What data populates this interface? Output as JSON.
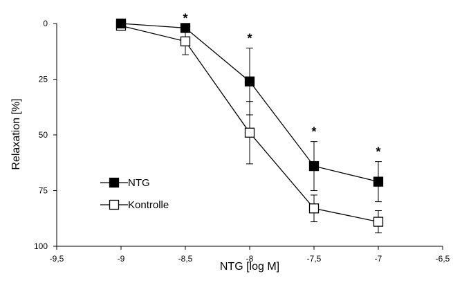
{
  "chart_data": {
    "type": "line",
    "xlabel": "NTG [log M]",
    "ylabel": "Relaxation [%]",
    "xlim": [
      -9.5,
      -6.5
    ],
    "ylim": [
      0,
      100
    ],
    "y_inverted": true,
    "grid": false,
    "legend_position": "bottom-left",
    "x_ticks": [
      -9.5,
      -9,
      -8.5,
      -8,
      -7.5,
      -7,
      -6.5
    ],
    "x_tick_labels": [
      "-9,5",
      "-9",
      "-8,5",
      "-8",
      "-7,5",
      "-7",
      "-6,5"
    ],
    "y_ticks": [
      0,
      25,
      50,
      75,
      100
    ],
    "y_tick_labels": [
      "0",
      "25",
      "50",
      "75",
      "100"
    ],
    "x": [
      -9,
      -8.5,
      -8,
      -7.5,
      -7
    ],
    "series": [
      {
        "name": "NTG",
        "marker": "filled-square",
        "color": "#000000",
        "values": [
          0,
          2,
          26,
          64,
          71
        ],
        "errors": [
          0,
          0,
          15,
          11,
          9
        ]
      },
      {
        "name": "Kontrolle",
        "marker": "open-square",
        "color": "#000000",
        "values": [
          1,
          8,
          49,
          83,
          89
        ],
        "errors": [
          0,
          6,
          14,
          6,
          5
        ]
      }
    ],
    "annotations": [
      {
        "text": "*",
        "x": -8.5
      },
      {
        "text": "*",
        "x": -8
      },
      {
        "text": "*",
        "x": -7.5
      },
      {
        "text": "*",
        "x": -7
      }
    ]
  }
}
